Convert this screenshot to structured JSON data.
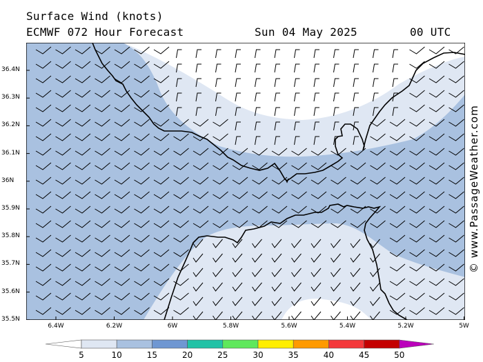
{
  "title": {
    "line1": "Surface Wind (knots)",
    "model": "ECMWF 072 Hour Forecast",
    "date": "Sun 04 May 2025",
    "time": "00 UTC"
  },
  "watermark": "© www.PassageWeather.com",
  "map": {
    "lat_ticks": [
      "36.4N",
      "36.3N",
      "36.2N",
      "36.1N",
      "36N",
      "35.9N",
      "35.8N",
      "35.7N",
      "35.6N",
      "35.5N"
    ],
    "lon_ticks": [
      "6.4W",
      "6.2W",
      "6W",
      "5.8W",
      "5.6W",
      "5.4W",
      "5.2W",
      "5W"
    ],
    "region": "Strait of Gibraltar",
    "wind_direction": "westerly",
    "colors": {
      "band_5_10": "#dfe7f3",
      "band_10_15": "#a9c1e0",
      "land_outline": "#000000",
      "barb": "#000000"
    }
  },
  "colorbar": {
    "labels": [
      "5",
      "10",
      "15",
      "20",
      "25",
      "30",
      "35",
      "40",
      "45",
      "50"
    ],
    "colors": [
      "#dfe7f3",
      "#a9c1e0",
      "#6f97d2",
      "#22c2a6",
      "#5fe85c",
      "#ffee00",
      "#ff9a00",
      "#f4373a",
      "#c40000",
      "#bb00bb"
    ]
  }
}
